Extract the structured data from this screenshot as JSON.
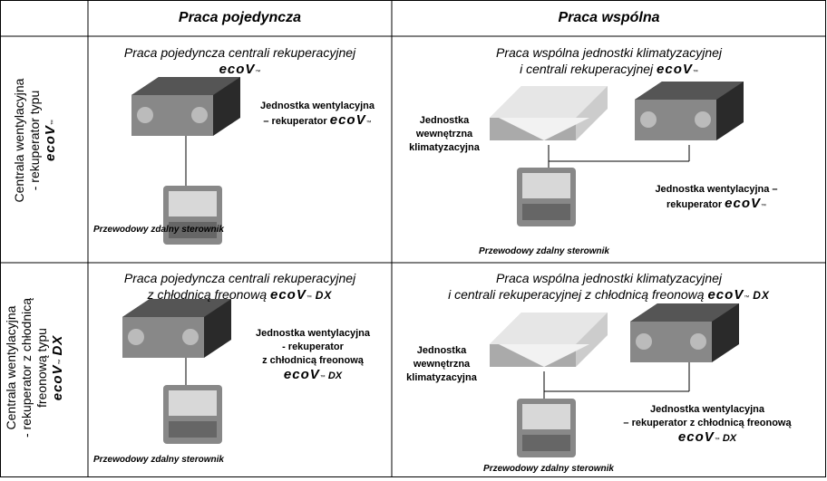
{
  "brand": "ecoV",
  "tm": "™",
  "dx": "DX",
  "header": {
    "single": "Praca pojedyncza",
    "joint": "Praca wspólna"
  },
  "rows": [
    {
      "label": [
        "Centrala wentylacyjna",
        "- rekuperator typu"
      ],
      "single": {
        "caption": [
          "Praca pojedyncza centrali rekuperacyjnej"
        ],
        "unit": [
          "Jednostka wentylacyjna",
          "– rekuperator"
        ],
        "controller": "Przewodowy zdalny sterownik"
      },
      "joint": {
        "caption": [
          "Praca wspólna jednostki klimatyzacyjnej",
          "i centrali rekuperacyjnej"
        ],
        "indoor": [
          "Jednostka",
          "wewnętrzna",
          "klimatyzacyjna"
        ],
        "unit": [
          "Jednostka wentylacyjna –",
          "rekuperator"
        ],
        "controller": "Przewodowy zdalny sterownik"
      }
    },
    {
      "label": [
        "Centrala wentylacyjna",
        "- rekuperator z chłodnicą",
        "freonową  typu"
      ],
      "single": {
        "caption": [
          "Praca pojedyncza centrali rekuperacyjnej",
          "z chłodnicą freonową"
        ],
        "unit": [
          "Jednostka wentylacyjna",
          "- rekuperator",
          "z chłodnicą freonową"
        ],
        "controller": "Przewodowy zdalny sterownik"
      },
      "joint": {
        "caption": [
          "Praca wspólna jednostki klimatyzacyjnej",
          "i centrali rekuperacyjnej z chłodnicą freonową"
        ],
        "indoor": [
          "Jednostka",
          "wewnętrzna",
          "klimatyzacyjna"
        ],
        "unit": [
          "Jednostka wentylacyjna",
          "– rekuperator z chłodnicą freonową"
        ],
        "controller": "Przewodowy zdalny sterownik"
      }
    }
  ]
}
